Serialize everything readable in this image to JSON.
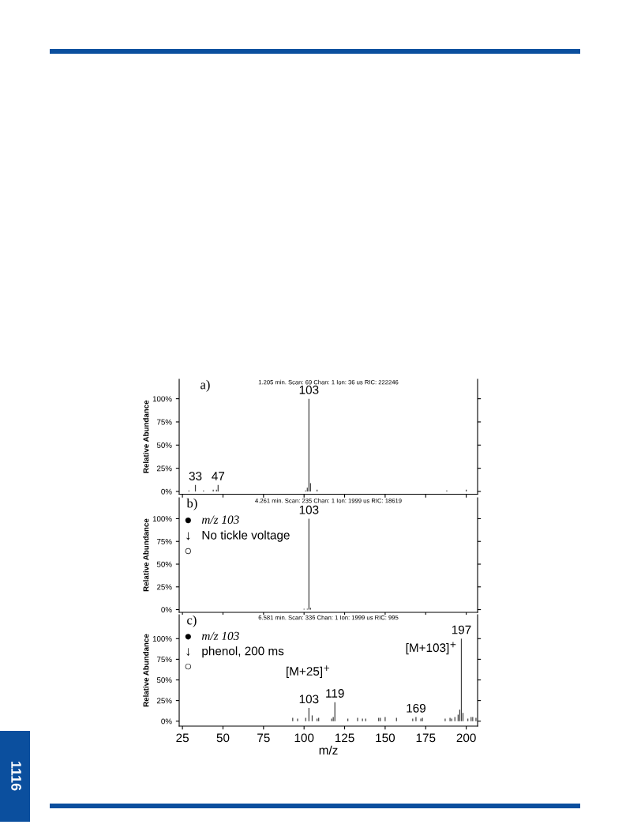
{
  "chart_data": [
    {
      "type": "bar",
      "x": [
        29,
        33,
        38,
        44,
        46,
        47,
        101,
        102,
        103,
        104,
        108,
        188,
        200
      ],
      "values": [
        1,
        7,
        1,
        2,
        2,
        7,
        1,
        4,
        100,
        9,
        2,
        1,
        2
      ],
      "color": "#404040",
      "ylabel": "Relative Abundance",
      "xlim": [
        23,
        207
      ],
      "xticks": [
        25,
        50,
        75,
        100,
        125,
        150,
        175,
        200
      ],
      "ylim": [
        -3,
        121
      ],
      "yticks": [
        {
          "value": 0,
          "label": "0%"
        },
        {
          "value": 25,
          "label": "25%"
        },
        {
          "value": 50,
          "label": "50%"
        },
        {
          "value": 75,
          "label": "75%"
        },
        {
          "value": 100,
          "label": "100%"
        }
      ],
      "tick_labels": "y",
      "grid": false,
      "annotations": [
        "a)",
        "1.205 min. Scan: 69 Chan: 1 Ion: 36 us RIC: 222246",
        {
          "text": "103",
          "x": 103,
          "y": 100
        },
        {
          "text": "33",
          "x": 33,
          "y": 7
        },
        {
          "text": "47",
          "x": 47,
          "y": 7
        }
      ]
    },
    {
      "type": "bar",
      "x": [
        100,
        102,
        103,
        104
      ],
      "values": [
        1,
        1,
        100,
        2
      ],
      "color": "#404040",
      "ylabel": "Relative Abundance",
      "xlim": [
        23,
        207
      ],
      "xticks": [
        25,
        50,
        75,
        100,
        125,
        150,
        175,
        200
      ],
      "ylim": [
        -3,
        123
      ],
      "yticks": [
        {
          "value": 0,
          "label": "0%"
        },
        {
          "value": 25,
          "label": "25%"
        },
        {
          "value": 50,
          "label": "50%"
        },
        {
          "value": 75,
          "label": "75%"
        },
        {
          "value": 100,
          "label": "100%"
        }
      ],
      "tick_labels": "y",
      "grid": false,
      "annotations": [
        "b)",
        "4.261 min. Scan: 235 Chan: 1 Ion: 1999 us RIC: 18619",
        "●",
        "m/z 103",
        "↓",
        "No tickle voltage",
        "○",
        {
          "text": "103",
          "x": 103,
          "y": 100
        }
      ]
    },
    {
      "type": "bar",
      "x": [
        93,
        96,
        101,
        103,
        105,
        108,
        109,
        117,
        118,
        119,
        127,
        133,
        136,
        138,
        146,
        147,
        150,
        157,
        167,
        169,
        172,
        173,
        187,
        190,
        191,
        193,
        195,
        196,
        197,
        198,
        201,
        203,
        204,
        206
      ],
      "values": [
        4,
        3,
        4,
        16,
        7,
        3,
        4,
        3,
        5,
        23,
        3,
        4,
        3,
        3,
        4,
        4,
        5,
        4,
        3,
        5,
        3,
        4,
        3,
        4,
        3,
        5,
        8,
        14,
        100,
        10,
        3,
        5,
        5,
        4
      ],
      "color": "#404040",
      "xlabel": "m/z",
      "ylabel": "Relative Abundance",
      "xlim": [
        23,
        207
      ],
      "xticks": [
        25,
        50,
        75,
        100,
        125,
        150,
        175,
        200
      ],
      "ylim": [
        -6,
        129
      ],
      "yticks": [
        {
          "value": 0,
          "label": "0%"
        },
        {
          "value": 25,
          "label": "25%"
        },
        {
          "value": 50,
          "label": "50%"
        },
        {
          "value": 75,
          "label": "75%"
        },
        {
          "value": 100,
          "label": "100%"
        }
      ],
      "grid": false,
      "annotations": [
        "c)",
        "6.581 min. Scan: 336 Chan: 1 Ion: 1999 us RIC: 995",
        "●",
        "m/z 103",
        "↓",
        "phenol, 200 ms",
        "○",
        "1116",
        {
          "text": "103",
          "x": 103,
          "y": 16
        },
        {
          "text": "119",
          "x": 119,
          "y": 23
        },
        {
          "text": "169",
          "x": 169,
          "y": 5
        },
        {
          "text": "197",
          "x": 197,
          "y": 100
        },
        {
          "text": "[M+25]$^{+}$",
          "x": 119,
          "y": 23
        },
        {
          "text": "[M+103]$^{+}$",
          "x": 197,
          "y": 100
        }
      ]
    }
  ]
}
